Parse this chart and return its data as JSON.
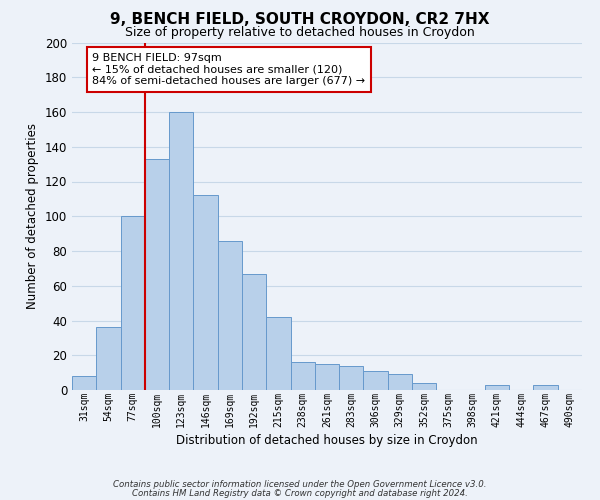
{
  "title": "9, BENCH FIELD, SOUTH CROYDON, CR2 7HX",
  "subtitle": "Size of property relative to detached houses in Croydon",
  "xlabel": "Distribution of detached houses by size in Croydon",
  "ylabel": "Number of detached properties",
  "bar_labels": [
    "31sqm",
    "54sqm",
    "77sqm",
    "100sqm",
    "123sqm",
    "146sqm",
    "169sqm",
    "192sqm",
    "215sqm",
    "238sqm",
    "261sqm",
    "283sqm",
    "306sqm",
    "329sqm",
    "352sqm",
    "375sqm",
    "398sqm",
    "421sqm",
    "444sqm",
    "467sqm",
    "490sqm"
  ],
  "bar_values": [
    8,
    36,
    100,
    133,
    160,
    112,
    86,
    67,
    42,
    16,
    15,
    14,
    11,
    9,
    4,
    0,
    0,
    3,
    0,
    3,
    0
  ],
  "bar_color": "#b8d0ea",
  "bar_edge_color": "#6699cc",
  "grid_color": "#c8d8e8",
  "vline_color": "#cc0000",
  "vline_x": 2.5,
  "annotation_line1": "9 BENCH FIELD: 97sqm",
  "annotation_line2": "← 15% of detached houses are smaller (120)",
  "annotation_line3": "84% of semi-detached houses are larger (677) →",
  "annotation_box_color": "#ffffff",
  "annotation_box_edge": "#cc0000",
  "ylim": [
    0,
    200
  ],
  "yticks": [
    0,
    20,
    40,
    60,
    80,
    100,
    120,
    140,
    160,
    180,
    200
  ],
  "footer_line1": "Contains HM Land Registry data © Crown copyright and database right 2024.",
  "footer_line2": "Contains public sector information licensed under the Open Government Licence v3.0.",
  "bg_color": "#edf2f9",
  "title_fontsize": 11,
  "subtitle_fontsize": 9
}
